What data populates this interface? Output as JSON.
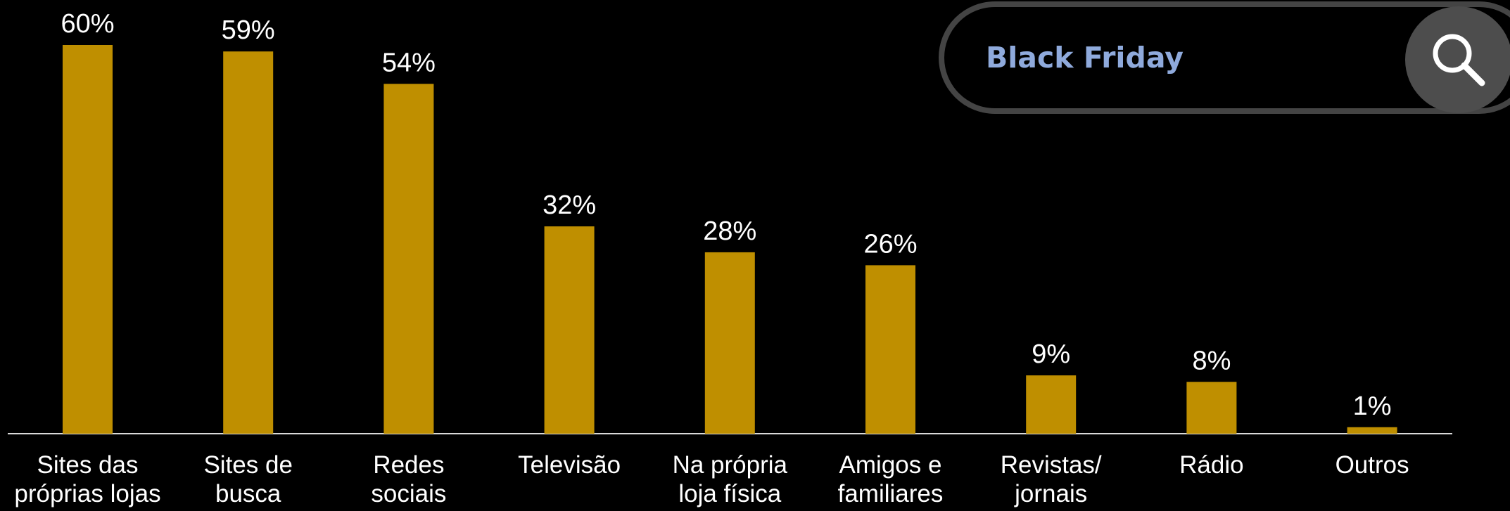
{
  "chart_data": {
    "type": "bar",
    "categories": [
      "Sites das\npróprias lojas",
      "Sites de\nbusca",
      "Redes\nsociais",
      "Televisão",
      "Na própria\nloja física",
      "Amigos e\nfamiliares",
      "Revistas/\njornais",
      "Rádio",
      "Outros"
    ],
    "values": [
      60,
      59,
      54,
      32,
      28,
      26,
      9,
      8,
      1
    ],
    "value_labels": [
      "60%",
      "59%",
      "54%",
      "32%",
      "28%",
      "26%",
      "9%",
      "8%",
      "1%"
    ],
    "color": "#bf8f00"
  },
  "search": {
    "query": "Black Friday"
  }
}
